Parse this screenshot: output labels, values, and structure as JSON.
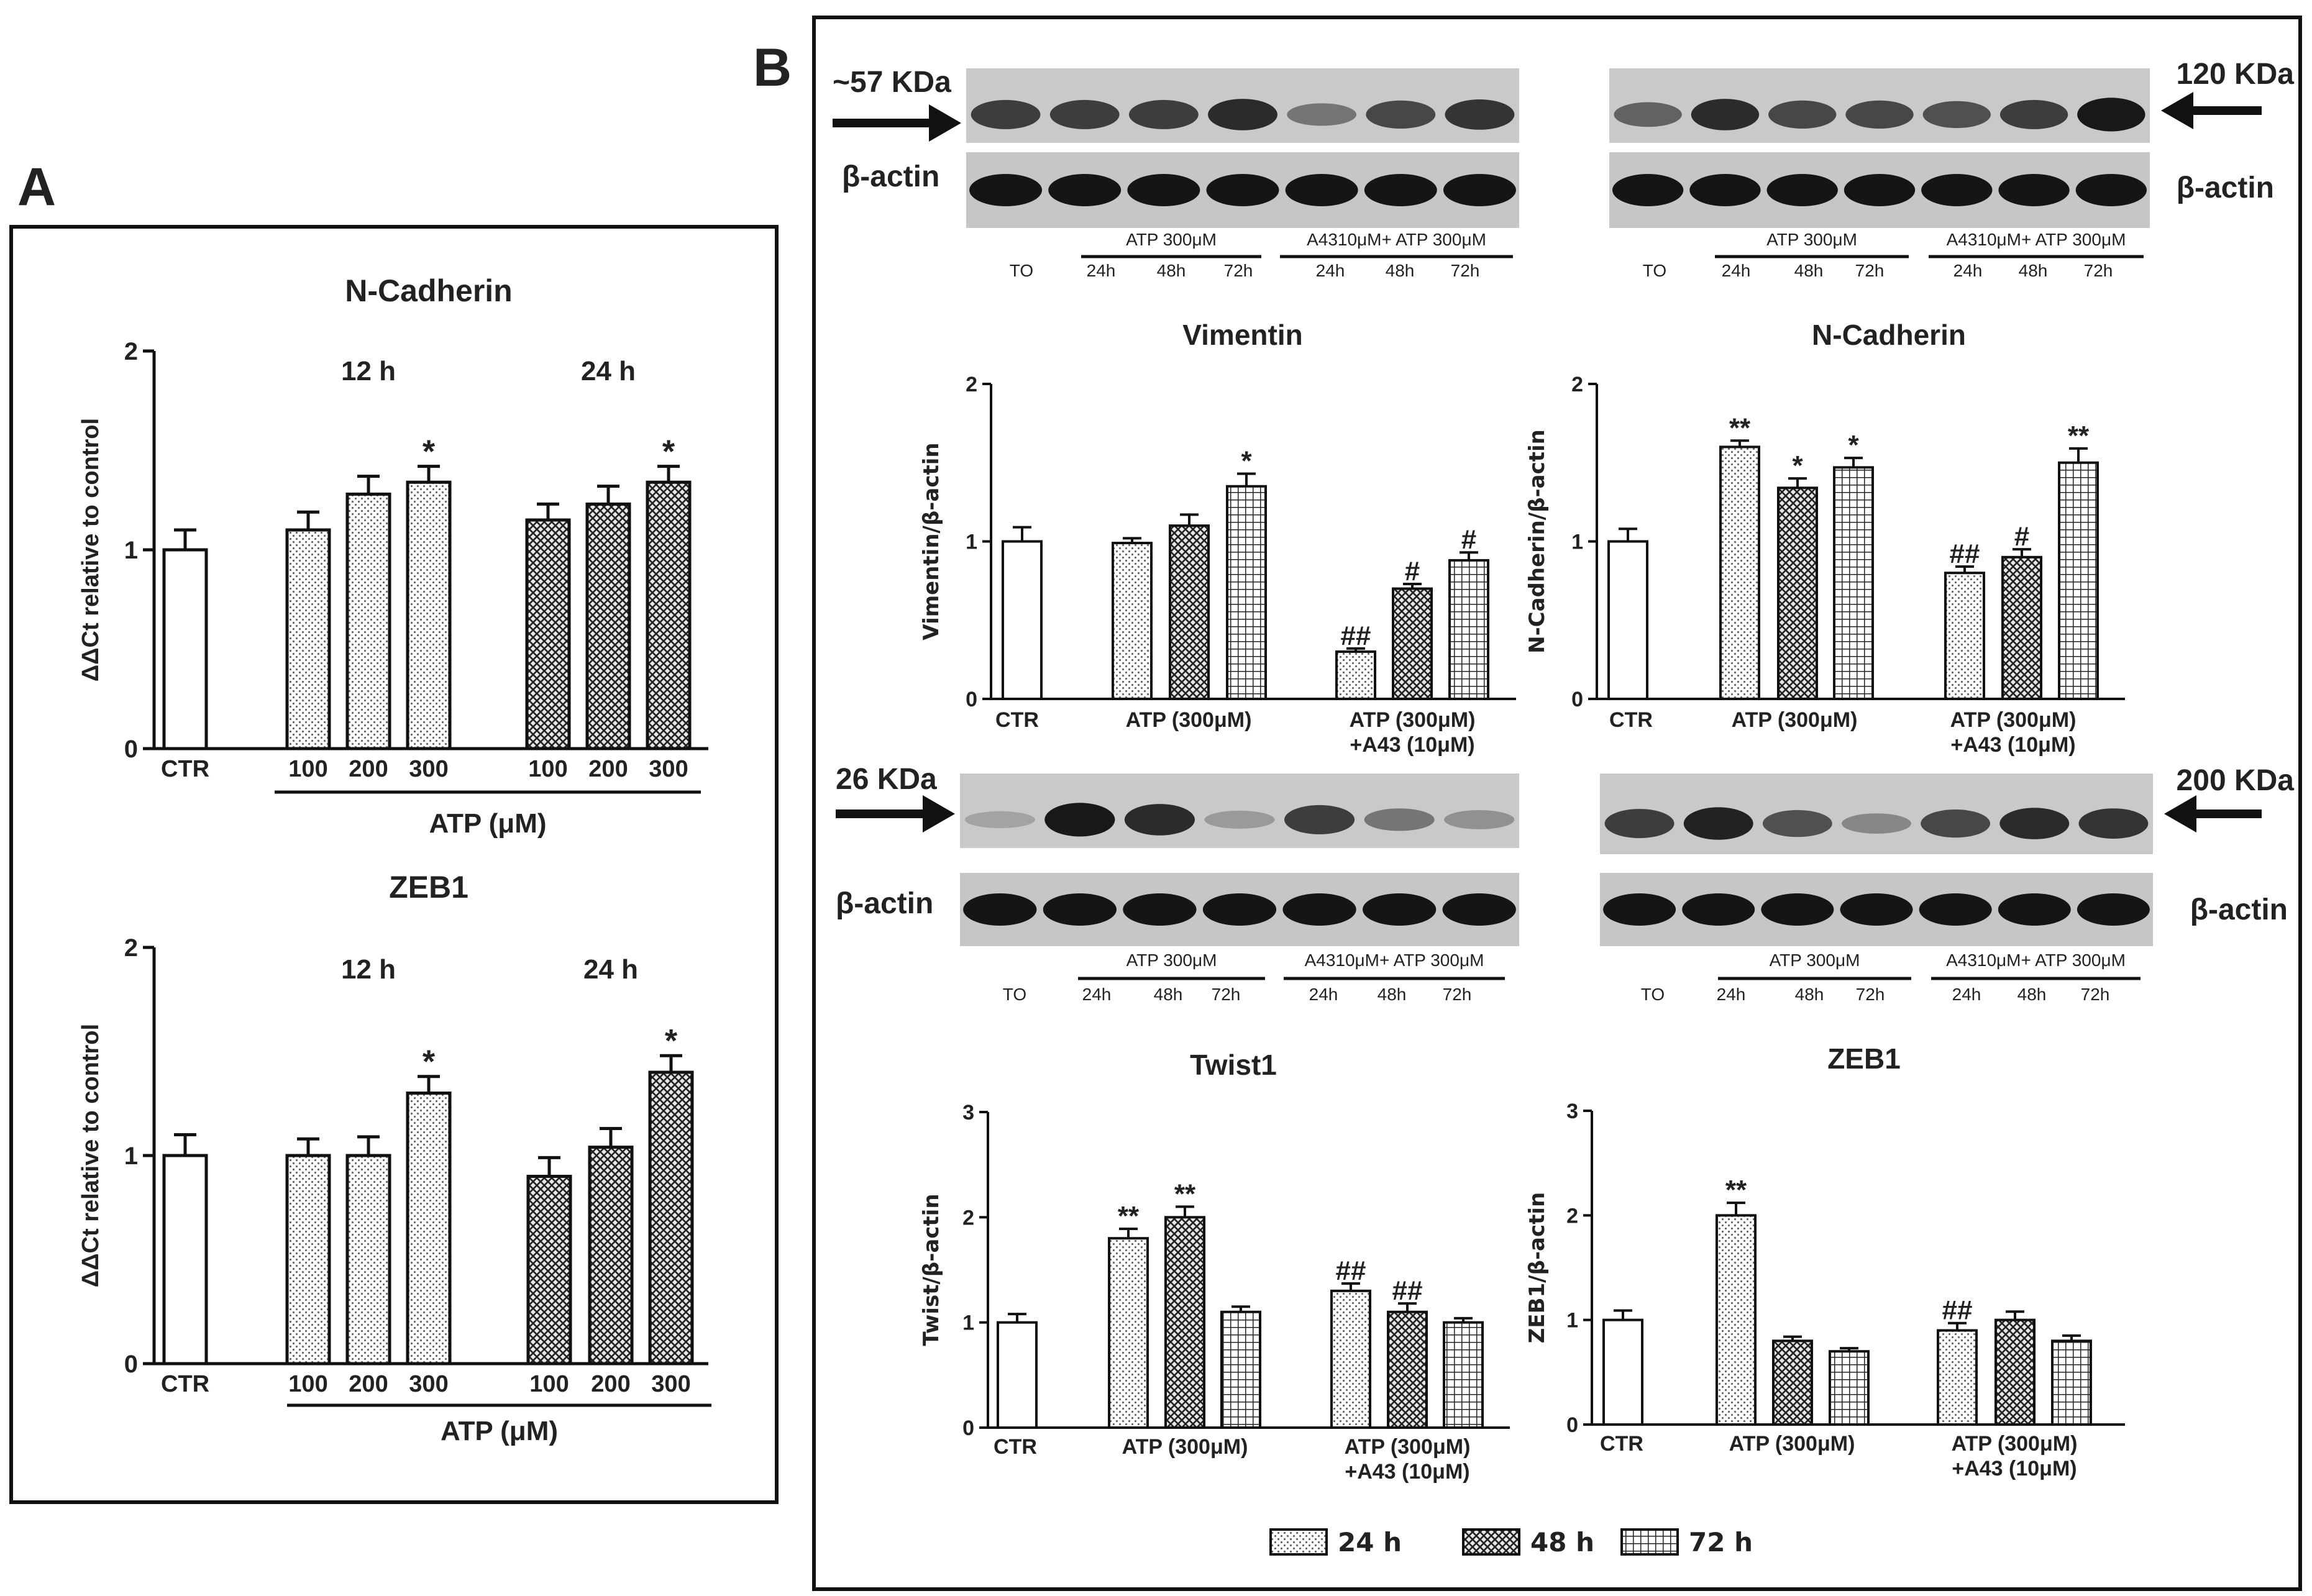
{
  "panel_a": {
    "letter": "A",
    "charts": [
      {
        "title": "N-Cadherin",
        "ylabel": "ΔΔCt relative to control",
        "group_labels": [
          "12 h",
          "24 h"
        ],
        "xlabel": "ATP (μM)",
        "ylim": [
          0,
          2
        ],
        "yticks": [
          "0",
          "1",
          "2"
        ],
        "bars": [
          {
            "label": "CTR",
            "value": 1.0,
            "err": 0.1,
            "pattern": "white",
            "star": ""
          },
          {
            "label": "100",
            "value": 1.1,
            "err": 0.09,
            "pattern": "dots",
            "star": ""
          },
          {
            "label": "200",
            "value": 1.28,
            "err": 0.09,
            "pattern": "dots",
            "star": ""
          },
          {
            "label": "300",
            "value": 1.34,
            "err": 0.08,
            "pattern": "dots",
            "star": "*"
          },
          {
            "label": "100",
            "value": 1.15,
            "err": 0.08,
            "pattern": "cross",
            "star": ""
          },
          {
            "label": "200",
            "value": 1.23,
            "err": 0.09,
            "pattern": "cross",
            "star": ""
          },
          {
            "label": "300",
            "value": 1.34,
            "err": 0.08,
            "pattern": "cross",
            "star": "*"
          }
        ]
      },
      {
        "title": "ZEB1",
        "ylabel": "ΔΔCt relative to control",
        "group_labels": [
          "12 h",
          "24 h"
        ],
        "xlabel": "ATP (μM)",
        "ylim": [
          0,
          2
        ],
        "yticks": [
          "0",
          "1",
          "2"
        ],
        "bars": [
          {
            "label": "CTR",
            "value": 1.0,
            "err": 0.1,
            "pattern": "white",
            "star": ""
          },
          {
            "label": "100",
            "value": 1.0,
            "err": 0.08,
            "pattern": "dots",
            "star": ""
          },
          {
            "label": "200",
            "value": 1.0,
            "err": 0.09,
            "pattern": "dots",
            "star": ""
          },
          {
            "label": "300",
            "value": 1.3,
            "err": 0.08,
            "pattern": "dots",
            "star": "*"
          },
          {
            "label": "100",
            "value": 0.9,
            "err": 0.09,
            "pattern": "cross",
            "star": ""
          },
          {
            "label": "200",
            "value": 1.04,
            "err": 0.09,
            "pattern": "cross",
            "star": ""
          },
          {
            "label": "300",
            "value": 1.4,
            "err": 0.08,
            "pattern": "cross",
            "star": "*"
          }
        ]
      }
    ]
  },
  "panel_b": {
    "letter": "B",
    "lane_labels": [
      "TO",
      "24h",
      "48h",
      "72h",
      "24h",
      "48h",
      "72h"
    ],
    "group1": "ATP 300μM",
    "group2": "A4310μM+ ATP 300μM",
    "blots": [
      {
        "mw": "~57 KDa",
        "actin": "β-actin",
        "bands": [
          0.75,
          0.75,
          0.75,
          0.85,
          0.45,
          0.7,
          0.8
        ]
      },
      {
        "mw": "120 KDa",
        "actin": "β-actin",
        "bands": [
          0.55,
          0.85,
          0.7,
          0.7,
          0.65,
          0.75,
          0.95
        ]
      },
      {
        "mw": "26 KDa",
        "actin": "β-actin",
        "bands": [
          0.2,
          0.95,
          0.85,
          0.25,
          0.75,
          0.45,
          0.3
        ]
      },
      {
        "mw": "200 KDa",
        "actin": "β-actin",
        "bands": [
          0.75,
          0.9,
          0.65,
          0.35,
          0.7,
          0.85,
          0.8
        ]
      }
    ],
    "charts": [
      {
        "title": "Vimentin",
        "ylabel": "Vimentin/β-actin",
        "ylim": [
          0,
          2
        ],
        "yticks": [
          "0",
          "1",
          "2"
        ],
        "groups": [
          "CTR",
          "ATP (300μM)",
          "ATP (300μM)\n+A43 (10μM)"
        ],
        "bars": [
          {
            "value": 1.0,
            "err": 0.09,
            "pattern": "white",
            "mark": ""
          },
          {
            "value": 0.99,
            "err": 0.03,
            "pattern": "dots",
            "mark": ""
          },
          {
            "value": 1.1,
            "err": 0.07,
            "pattern": "cross",
            "mark": ""
          },
          {
            "value": 1.35,
            "err": 0.08,
            "pattern": "grid",
            "mark": "*"
          },
          {
            "value": 0.3,
            "err": 0.02,
            "pattern": "dots",
            "mark": "##"
          },
          {
            "value": 0.7,
            "err": 0.03,
            "pattern": "cross",
            "mark": "#"
          },
          {
            "value": 0.88,
            "err": 0.05,
            "pattern": "grid",
            "mark": "#"
          }
        ]
      },
      {
        "title": "N-Cadherin",
        "ylabel": "N-Cadherin/β-actin",
        "ylim": [
          0,
          2
        ],
        "yticks": [
          "0",
          "1",
          "2"
        ],
        "groups": [
          "CTR",
          "ATP (300μM)",
          "ATP (300μM)\n+A43 (10μM)"
        ],
        "bars": [
          {
            "value": 1.0,
            "err": 0.08,
            "pattern": "white",
            "mark": ""
          },
          {
            "value": 1.6,
            "err": 0.04,
            "pattern": "dots",
            "mark": "**"
          },
          {
            "value": 1.34,
            "err": 0.06,
            "pattern": "cross",
            "mark": "*"
          },
          {
            "value": 1.47,
            "err": 0.06,
            "pattern": "grid",
            "mark": "*"
          },
          {
            "value": 0.8,
            "err": 0.04,
            "pattern": "dots",
            "mark": "##"
          },
          {
            "value": 0.9,
            "err": 0.05,
            "pattern": "cross",
            "mark": "#"
          },
          {
            "value": 1.5,
            "err": 0.09,
            "pattern": "grid",
            "mark": "**"
          }
        ]
      },
      {
        "title": "Twist1",
        "ylabel": "Twist/β-actin",
        "ylim": [
          0,
          3
        ],
        "yticks": [
          "0",
          "1",
          "2",
          "3"
        ],
        "groups": [
          "CTR",
          "ATP (300μM)",
          "ATP (300μM)\n+A43 (10μM)"
        ],
        "bars": [
          {
            "value": 1.0,
            "err": 0.08,
            "pattern": "white",
            "mark": ""
          },
          {
            "value": 1.8,
            "err": 0.09,
            "pattern": "dots",
            "mark": "**"
          },
          {
            "value": 2.0,
            "err": 0.1,
            "pattern": "cross",
            "mark": "**"
          },
          {
            "value": 1.1,
            "err": 0.05,
            "pattern": "grid",
            "mark": ""
          },
          {
            "value": 1.3,
            "err": 0.07,
            "pattern": "dots",
            "mark": "##"
          },
          {
            "value": 1.1,
            "err": 0.08,
            "pattern": "cross",
            "mark": "##"
          },
          {
            "value": 1.0,
            "err": 0.04,
            "pattern": "grid",
            "mark": ""
          }
        ]
      },
      {
        "title": "ZEB1",
        "ylabel": "ZEB1/β-actin",
        "ylim": [
          0,
          3
        ],
        "yticks": [
          "0",
          "1",
          "2",
          "3"
        ],
        "groups": [
          "CTR",
          "ATP (300μM)",
          "ATP (300μM)\n+A43 (10μM)"
        ],
        "bars": [
          {
            "value": 1.0,
            "err": 0.09,
            "pattern": "white",
            "mark": ""
          },
          {
            "value": 2.0,
            "err": 0.12,
            "pattern": "dots",
            "mark": "**"
          },
          {
            "value": 0.8,
            "err": 0.04,
            "pattern": "cross",
            "mark": ""
          },
          {
            "value": 0.7,
            "err": 0.03,
            "pattern": "grid",
            "mark": ""
          },
          {
            "value": 0.9,
            "err": 0.07,
            "pattern": "dots",
            "mark": "##"
          },
          {
            "value": 1.0,
            "err": 0.08,
            "pattern": "cross",
            "mark": ""
          },
          {
            "value": 0.8,
            "err": 0.05,
            "pattern": "grid",
            "mark": ""
          }
        ]
      }
    ],
    "legend": [
      {
        "label": "24 h",
        "pattern": "dots"
      },
      {
        "label": "48 h",
        "pattern": "cross"
      },
      {
        "label": "72 h",
        "pattern": "grid"
      }
    ]
  },
  "chart_data": [
    {
      "type": "bar",
      "title": "N-Cadherin",
      "ylabel": "ΔΔCt relative to control",
      "xlabel": "ATP (μM)",
      "ylim": [
        0,
        2
      ],
      "categories": [
        "CTR",
        "12 h 100",
        "12 h 200",
        "12 h 300",
        "24 h 100",
        "24 h 200",
        "24 h 300"
      ],
      "values": [
        1.0,
        1.1,
        1.28,
        1.34,
        1.15,
        1.23,
        1.34
      ]
    },
    {
      "type": "bar",
      "title": "ZEB1",
      "ylabel": "ΔΔCt relative to control",
      "xlabel": "ATP (μM)",
      "ylim": [
        0,
        2
      ],
      "categories": [
        "CTR",
        "12 h 100",
        "12 h 200",
        "12 h 300",
        "24 h 100",
        "24 h 200",
        "24 h 300"
      ],
      "values": [
        1.0,
        1.0,
        1.0,
        1.3,
        0.9,
        1.04,
        1.4
      ]
    },
    {
      "type": "bar",
      "title": "Vimentin",
      "ylabel": "Vimentin/β-actin",
      "ylim": [
        0,
        2
      ],
      "categories": [
        "CTR",
        "ATP (300μM)",
        "ATP (300μM) +A43 (10μM)"
      ],
      "series": [
        {
          "name": "24 h",
          "values": [
            1.0,
            0.99,
            0.3
          ]
        },
        {
          "name": "48 h",
          "values": [
            null,
            1.1,
            0.7
          ]
        },
        {
          "name": "72 h",
          "values": [
            null,
            1.35,
            0.88
          ]
        }
      ]
    },
    {
      "type": "bar",
      "title": "N-Cadherin",
      "ylabel": "N-Cadherin/β-actin",
      "ylim": [
        0,
        2
      ],
      "categories": [
        "CTR",
        "ATP (300μM)",
        "ATP (300μM) +A43 (10μM)"
      ],
      "series": [
        {
          "name": "24 h",
          "values": [
            1.0,
            1.6,
            0.8
          ]
        },
        {
          "name": "48 h",
          "values": [
            null,
            1.34,
            0.9
          ]
        },
        {
          "name": "72 h",
          "values": [
            null,
            1.47,
            1.5
          ]
        }
      ]
    },
    {
      "type": "bar",
      "title": "Twist1",
      "ylabel": "Twist/β-actin",
      "ylim": [
        0,
        3
      ],
      "categories": [
        "CTR",
        "ATP (300μM)",
        "ATP (300μM) +A43 (10μM)"
      ],
      "series": [
        {
          "name": "24 h",
          "values": [
            1.0,
            1.8,
            1.3
          ]
        },
        {
          "name": "48 h",
          "values": [
            null,
            2.0,
            1.1
          ]
        },
        {
          "name": "72 h",
          "values": [
            null,
            1.1,
            1.0
          ]
        }
      ]
    },
    {
      "type": "bar",
      "title": "ZEB1",
      "ylabel": "ZEB1/β-actin",
      "ylim": [
        0,
        3
      ],
      "categories": [
        "CTR",
        "ATP (300μM)",
        "ATP (300μM) +A43 (10μM)"
      ],
      "series": [
        {
          "name": "24 h",
          "values": [
            1.0,
            2.0,
            0.9
          ]
        },
        {
          "name": "48 h",
          "values": [
            null,
            0.8,
            1.0
          ]
        },
        {
          "name": "72 h",
          "values": [
            null,
            0.7,
            0.8
          ]
        }
      ]
    }
  ]
}
